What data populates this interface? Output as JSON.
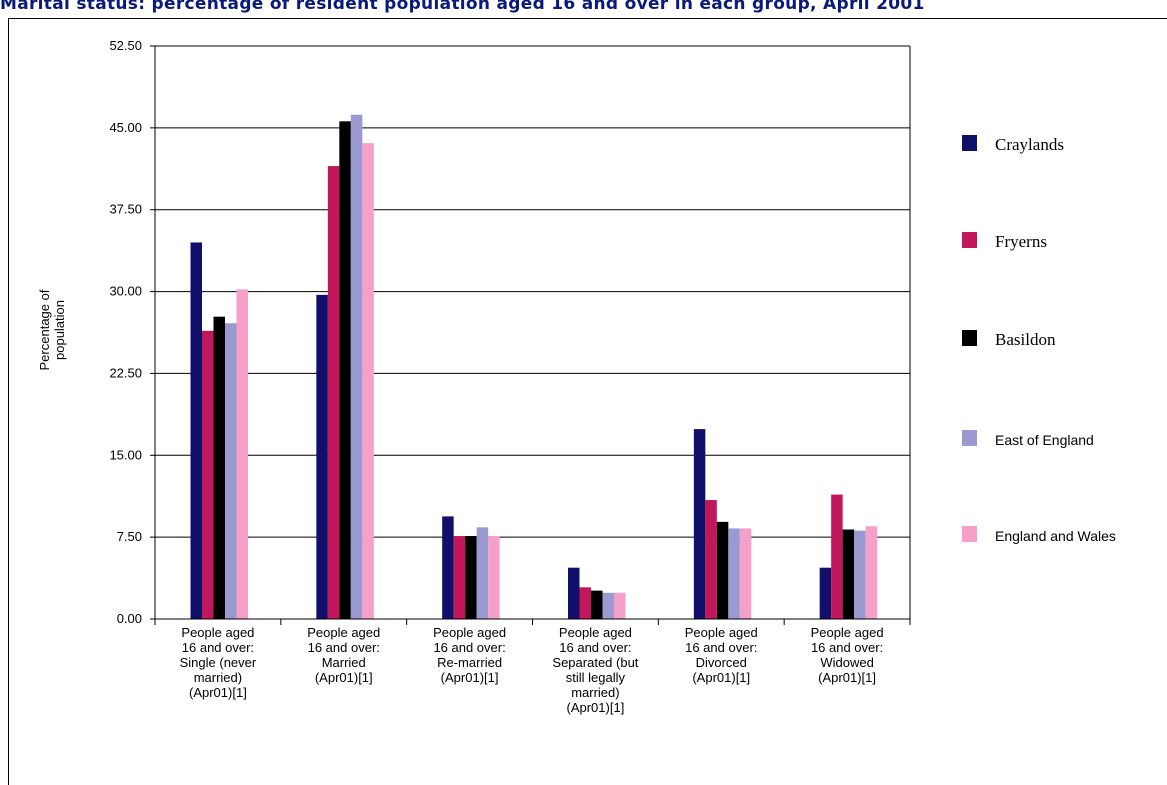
{
  "title": "Marital status: percentage of resident population aged 16 and over in each group, April 2001",
  "chart_data": {
    "type": "bar",
    "ylabel": "Percentage of population",
    "ylim": [
      0,
      52.5
    ],
    "yticks": [
      "0.00",
      "7.50",
      "15.00",
      "22.50",
      "30.00",
      "37.50",
      "45.00",
      "52.50"
    ],
    "grid": true,
    "legend_position": "right",
    "categories": [
      "People aged 16 and over: Single (never married) (Apr01)[1]",
      "People aged 16 and over: Married (Apr01)[1]",
      "People aged 16 and over: Re-married (Apr01)[1]",
      "People aged 16 and over: Separated (but still legally married) (Apr01)[1]",
      "People aged 16 and over: Divorced (Apr01)[1]",
      "People aged 16 and over: Widowed (Apr01)[1]"
    ],
    "category_lines": [
      [
        "People aged",
        "16 and over:",
        "Single (never",
        "married)",
        "(Apr01)[1]"
      ],
      [
        "People aged",
        "16 and over:",
        "Married",
        "(Apr01)[1]"
      ],
      [
        "People aged",
        "16 and over:",
        "Re-married",
        "(Apr01)[1]"
      ],
      [
        "People aged",
        "16 and over:",
        "Separated (but",
        "still legally",
        "married)",
        "(Apr01)[1]"
      ],
      [
        "People aged",
        "16 and over:",
        "Divorced",
        "(Apr01)[1]"
      ],
      [
        "People aged",
        "16 and over:",
        "Widowed",
        "(Apr01)[1]"
      ]
    ],
    "series": [
      {
        "name": "Craylands",
        "color": "#10106b",
        "values": [
          34.5,
          29.7,
          9.4,
          4.7,
          17.4,
          4.7
        ]
      },
      {
        "name": "Fryerns",
        "color": "#c2185b",
        "values": [
          26.4,
          41.5,
          7.6,
          2.9,
          10.9,
          11.4
        ]
      },
      {
        "name": "Basildon",
        "color": "#000000",
        "values": [
          27.7,
          45.6,
          7.6,
          2.6,
          8.9,
          8.2
        ]
      },
      {
        "name": "East of England",
        "color": "#9a9ad0",
        "values": [
          27.1,
          46.2,
          8.4,
          2.4,
          8.3,
          8.1
        ]
      },
      {
        "name": "England and Wales",
        "color": "#f5a0c8",
        "values": [
          30.2,
          43.6,
          7.6,
          2.4,
          8.3,
          8.5
        ]
      }
    ]
  }
}
